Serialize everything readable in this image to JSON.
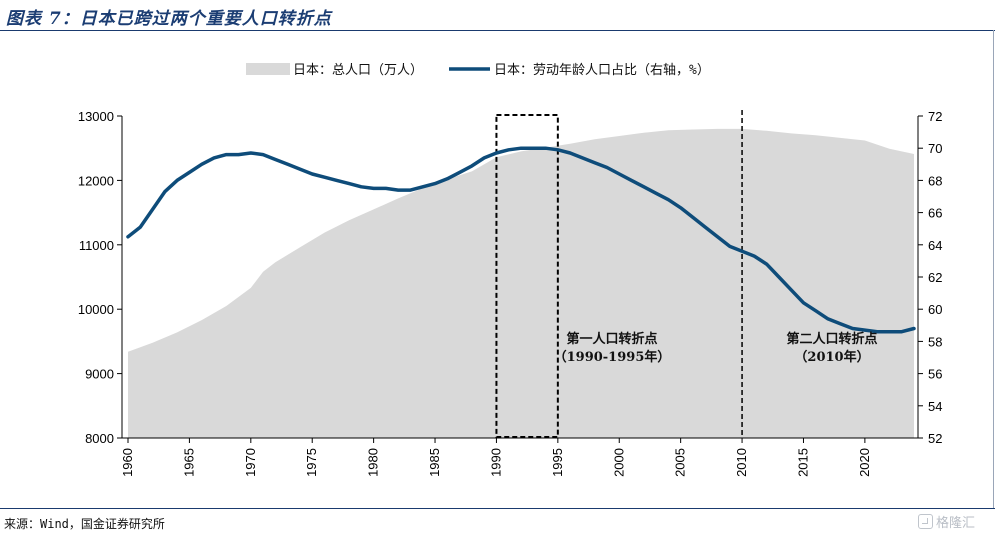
{
  "title": "图表 7：日本已跨过两个重要人口转折点",
  "source": "来源：Wind，国金证券研究所",
  "watermark": "格隆汇",
  "chart_data": {
    "type": "area+line",
    "x_ticks": [
      1960,
      1965,
      1970,
      1975,
      1980,
      1985,
      1990,
      1995,
      2000,
      2005,
      2010,
      2015,
      2020
    ],
    "xlim": [
      1960,
      2024
    ],
    "left_axis": {
      "ylim": [
        8000,
        13000
      ],
      "ticks": [
        8000,
        9000,
        10000,
        11000,
        12000,
        13000
      ]
    },
    "right_axis": {
      "ylim": [
        52,
        72
      ],
      "ticks": [
        52,
        54,
        56,
        58,
        60,
        62,
        64,
        66,
        68,
        70,
        72
      ]
    },
    "legend": {
      "placement": "top-center"
    },
    "series": [
      {
        "name": "日本：总人口（万人）",
        "kind": "area",
        "axis": "left",
        "color": "#d9d9d9",
        "x": [
          1960,
          1962,
          1964,
          1966,
          1968,
          1970,
          1971,
          1972,
          1974,
          1976,
          1978,
          1980,
          1982,
          1984,
          1986,
          1988,
          1990,
          1992,
          1994,
          1996,
          1998,
          2000,
          2002,
          2004,
          2006,
          2008,
          2010,
          2012,
          2014,
          2016,
          2018,
          2020,
          2022,
          2024
        ],
        "y": [
          9340,
          9480,
          9640,
          9830,
          10050,
          10330,
          10580,
          10730,
          10960,
          11190,
          11380,
          11550,
          11720,
          11880,
          12020,
          12140,
          12360,
          12450,
          12510,
          12570,
          12640,
          12690,
          12740,
          12780,
          12790,
          12800,
          12800,
          12770,
          12730,
          12700,
          12660,
          12620,
          12490,
          12410
        ]
      },
      {
        "name": "日本：劳动年龄人口占比（右轴，%）",
        "kind": "line",
        "axis": "right",
        "color": "#0e4c7a",
        "x": [
          1960,
          1961,
          1962,
          1963,
          1964,
          1965,
          1966,
          1967,
          1968,
          1969,
          1970,
          1971,
          1972,
          1973,
          1974,
          1975,
          1976,
          1977,
          1978,
          1979,
          1980,
          1981,
          1982,
          1983,
          1984,
          1985,
          1986,
          1987,
          1988,
          1989,
          1990,
          1991,
          1992,
          1993,
          1994,
          1995,
          1996,
          1997,
          1998,
          1999,
          2000,
          2001,
          2002,
          2003,
          2004,
          2005,
          2006,
          2007,
          2008,
          2009,
          2010,
          2011,
          2012,
          2013,
          2014,
          2015,
          2016,
          2017,
          2018,
          2019,
          2020,
          2021,
          2022,
          2023,
          2024
        ],
        "y": [
          64.5,
          65.1,
          66.2,
          67.3,
          68.0,
          68.5,
          69.0,
          69.4,
          69.6,
          69.6,
          69.7,
          69.6,
          69.3,
          69.0,
          68.7,
          68.4,
          68.2,
          68.0,
          67.8,
          67.6,
          67.5,
          67.5,
          67.4,
          67.4,
          67.6,
          67.8,
          68.1,
          68.5,
          68.9,
          69.4,
          69.7,
          69.9,
          70.0,
          70.0,
          70.0,
          69.9,
          69.7,
          69.4,
          69.1,
          68.8,
          68.4,
          68.0,
          67.6,
          67.2,
          66.8,
          66.3,
          65.7,
          65.1,
          64.5,
          63.9,
          63.6,
          63.3,
          62.8,
          62.0,
          61.2,
          60.4,
          59.9,
          59.4,
          59.1,
          58.8,
          58.7,
          58.6,
          58.6,
          58.6,
          58.8
        ]
      }
    ],
    "annotations": [
      {
        "kind": "box",
        "x_range": [
          1990,
          1995
        ],
        "label_line1": "第一人口转折点",
        "label_line2": "（1990-1995年）"
      },
      {
        "kind": "vline",
        "x": 2010,
        "label_line1": "第二人口转折点",
        "label_line2": "（2010年）"
      }
    ]
  }
}
